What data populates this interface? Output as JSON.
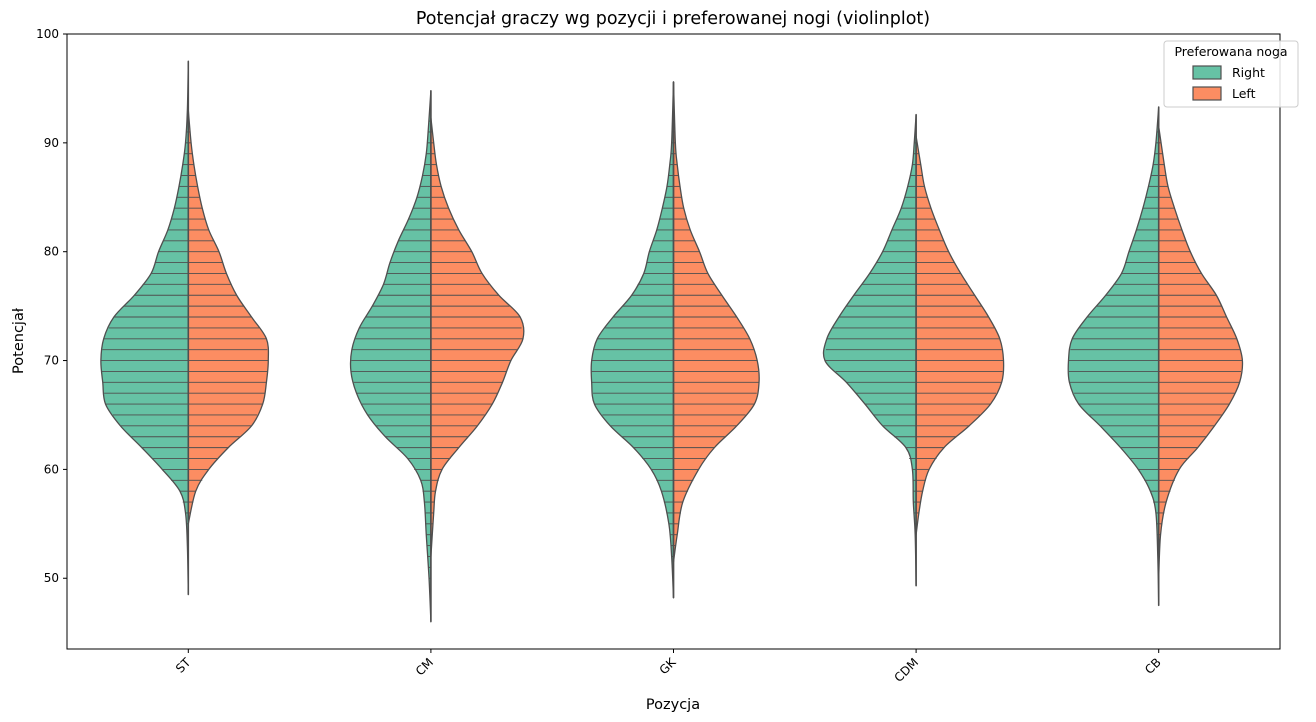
{
  "chart_data": {
    "type": "violin",
    "title": "Potencjał graczy wg pozycji i preferowanej nogi (violinplot)",
    "xlabel": "Pozycja",
    "ylabel": "Potencjał",
    "categories": [
      "ST",
      "CM",
      "GK",
      "CDM",
      "CB"
    ],
    "ylim": [
      43.5,
      100
    ],
    "yticks": [
      50,
      60,
      70,
      80,
      90,
      100
    ],
    "split": true,
    "inner": "stick",
    "legend": {
      "title": "Preferowana noga",
      "position": "top-right",
      "entries": [
        {
          "label": "Right",
          "color": "#66c2a5"
        },
        {
          "label": "Left",
          "color": "#fc8d62"
        }
      ]
    },
    "series": [
      {
        "name": "Right",
        "color": "#66c2a5",
        "side": "left",
        "range": [
          [
            48.5,
            97.5
          ],
          [
            46,
            94.8
          ],
          [
            48.2,
            95.6
          ],
          [
            49.3,
            92.6
          ],
          [
            47.5,
            93.3
          ]
        ],
        "density": [
          [
            [
              48.5,
              0
            ],
            [
              53,
              1
            ],
            [
              56,
              3
            ],
            [
              58,
              9
            ],
            [
              60,
              28
            ],
            [
              62,
              50
            ],
            [
              64,
              73
            ],
            [
              66,
              89
            ],
            [
              68,
              92
            ],
            [
              70,
              94
            ],
            [
              72,
              91
            ],
            [
              74,
              80
            ],
            [
              76,
              58
            ],
            [
              78,
              40
            ],
            [
              80,
              32
            ],
            [
              82,
              22
            ],
            [
              84,
              15
            ],
            [
              86,
              10
            ],
            [
              88,
              6
            ],
            [
              90,
              3
            ],
            [
              93,
              1
            ],
            [
              97.5,
              0
            ]
          ],
          [
            [
              46,
              0
            ],
            [
              50,
              2
            ],
            [
              54,
              5
            ],
            [
              57,
              7
            ],
            [
              59,
              11
            ],
            [
              61,
              25
            ],
            [
              63,
              49
            ],
            [
              65,
              68
            ],
            [
              67,
              80
            ],
            [
              69,
              86
            ],
            [
              71,
              85
            ],
            [
              73,
              77
            ],
            [
              75,
              63
            ],
            [
              77,
              51
            ],
            [
              79,
              44
            ],
            [
              81,
              35
            ],
            [
              83,
              24
            ],
            [
              85,
              15
            ],
            [
              87,
              9
            ],
            [
              89,
              5
            ],
            [
              91,
              3
            ],
            [
              94.8,
              0
            ]
          ],
          [
            [
              48.2,
              0
            ],
            [
              52,
              2
            ],
            [
              55,
              5
            ],
            [
              58,
              13
            ],
            [
              60,
              24
            ],
            [
              62,
              43
            ],
            [
              64,
              68
            ],
            [
              66,
              85
            ],
            [
              68,
              88
            ],
            [
              70,
              88
            ],
            [
              72,
              82
            ],
            [
              74,
              65
            ],
            [
              76,
              45
            ],
            [
              78,
              32
            ],
            [
              80,
              26
            ],
            [
              82,
              18
            ],
            [
              84,
              12
            ],
            [
              86,
              7
            ],
            [
              88,
              4
            ],
            [
              90,
              2
            ],
            [
              95.6,
              0
            ]
          ],
          [
            [
              49.3,
              0
            ],
            [
              54,
              1
            ],
            [
              57,
              3
            ],
            [
              60,
              4
            ],
            [
              62,
              11
            ],
            [
              64,
              36
            ],
            [
              66,
              55
            ],
            [
              68,
              75
            ],
            [
              70,
              98
            ],
            [
              72,
              96
            ],
            [
              74,
              83
            ],
            [
              76,
              67
            ],
            [
              78,
              50
            ],
            [
              80,
              36
            ],
            [
              82,
              26
            ],
            [
              84,
              16
            ],
            [
              86,
              9
            ],
            [
              88,
              4
            ],
            [
              90,
              2
            ],
            [
              92.6,
              0
            ]
          ],
          [
            [
              47.5,
              0
            ],
            [
              52,
              1
            ],
            [
              56,
              3
            ],
            [
              58,
              9
            ],
            [
              60,
              22
            ],
            [
              62,
              41
            ],
            [
              64,
              63
            ],
            [
              66,
              86
            ],
            [
              68,
              96
            ],
            [
              70,
              97
            ],
            [
              72,
              93
            ],
            [
              74,
              77
            ],
            [
              76,
              57
            ],
            [
              78,
              40
            ],
            [
              80,
              32
            ],
            [
              82,
              24
            ],
            [
              84,
              17
            ],
            [
              86,
              11
            ],
            [
              88,
              6
            ],
            [
              90,
              3
            ],
            [
              93.3,
              0
            ]
          ]
        ]
      },
      {
        "name": "Left",
        "color": "#fc8d62",
        "side": "right",
        "range": [
          [
            55,
            93
          ],
          [
            52,
            92.3
          ],
          [
            51.5,
            95.6
          ],
          [
            54,
            90.6
          ],
          [
            50,
            91.5
          ]
        ],
        "density": [
          [
            [
              55,
              0
            ],
            [
              58,
              8
            ],
            [
              60,
              22
            ],
            [
              62,
              43
            ],
            [
              64,
              68
            ],
            [
              66,
              80
            ],
            [
              68,
              84
            ],
            [
              70,
              86
            ],
            [
              72,
              84
            ],
            [
              74,
              68
            ],
            [
              76,
              52
            ],
            [
              78,
              41
            ],
            [
              80,
              33
            ],
            [
              82,
              22
            ],
            [
              84,
              15
            ],
            [
              86,
              10
            ],
            [
              88,
              6
            ],
            [
              90,
              3
            ],
            [
              93,
              0
            ]
          ],
          [
            [
              52,
              0
            ],
            [
              56,
              3
            ],
            [
              58,
              5
            ],
            [
              60,
              12
            ],
            [
              62,
              30
            ],
            [
              64,
              50
            ],
            [
              66,
              66
            ],
            [
              68,
              77
            ],
            [
              70,
              86
            ],
            [
              72,
              99
            ],
            [
              74,
              96
            ],
            [
              76,
              73
            ],
            [
              78,
              55
            ],
            [
              80,
              44
            ],
            [
              82,
              30
            ],
            [
              84,
              19
            ],
            [
              86,
              11
            ],
            [
              88,
              6
            ],
            [
              90,
              3
            ],
            [
              92.3,
              0
            ]
          ],
          [
            [
              51.5,
              0
            ],
            [
              54,
              4
            ],
            [
              57,
              10
            ],
            [
              60,
              27
            ],
            [
              62,
              44
            ],
            [
              64,
              68
            ],
            [
              66,
              87
            ],
            [
              68,
              92
            ],
            [
              70,
              90
            ],
            [
              72,
              82
            ],
            [
              74,
              68
            ],
            [
              76,
              52
            ],
            [
              78,
              37
            ],
            [
              80,
              28
            ],
            [
              82,
              18
            ],
            [
              84,
              11
            ],
            [
              86,
              7
            ],
            [
              88,
              4
            ],
            [
              90,
              2
            ],
            [
              95.6,
              0
            ]
          ],
          [
            [
              54,
              0
            ],
            [
              56,
              3
            ],
            [
              58,
              7
            ],
            [
              60,
              14
            ],
            [
              62,
              30
            ],
            [
              64,
              57
            ],
            [
              66,
              80
            ],
            [
              68,
              92
            ],
            [
              70,
              94
            ],
            [
              72,
              90
            ],
            [
              74,
              78
            ],
            [
              76,
              63
            ],
            [
              78,
              48
            ],
            [
              80,
              35
            ],
            [
              82,
              25
            ],
            [
              84,
              16
            ],
            [
              86,
              9
            ],
            [
              88,
              5
            ],
            [
              90.6,
              0
            ]
          ],
          [
            [
              50,
              0
            ],
            [
              54,
              2
            ],
            [
              57,
              8
            ],
            [
              60,
              22
            ],
            [
              62,
              42
            ],
            [
              64,
              60
            ],
            [
              66,
              76
            ],
            [
              68,
              87
            ],
            [
              70,
              90
            ],
            [
              72,
              84
            ],
            [
              74,
              73
            ],
            [
              76,
              62
            ],
            [
              78,
              46
            ],
            [
              80,
              34
            ],
            [
              82,
              25
            ],
            [
              84,
              17
            ],
            [
              86,
              10
            ],
            [
              88,
              6
            ],
            [
              91.5,
              0
            ]
          ]
        ]
      }
    ]
  }
}
